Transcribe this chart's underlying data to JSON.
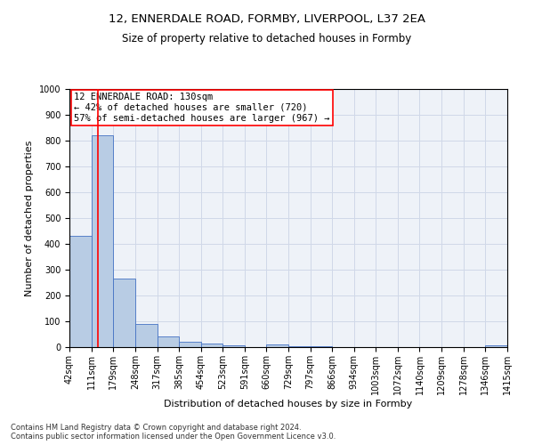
{
  "title1": "12, ENNERDALE ROAD, FORMBY, LIVERPOOL, L37 2EA",
  "title2": "Size of property relative to detached houses in Formby",
  "xlabel": "Distribution of detached houses by size in Formby",
  "ylabel": "Number of detached properties",
  "footer1": "Contains HM Land Registry data © Crown copyright and database right 2024.",
  "footer2": "Contains public sector information licensed under the Open Government Licence v3.0.",
  "annotation_line1": "12 ENNERDALE ROAD: 130sqm",
  "annotation_line2": "← 42% of detached houses are smaller (720)",
  "annotation_line3": "57% of semi-detached houses are larger (967) →",
  "subject_size": 130,
  "bar_edges": [
    42,
    111,
    179,
    248,
    317,
    385,
    454,
    523,
    591,
    660,
    729,
    797,
    866,
    934,
    1003,
    1072,
    1140,
    1209,
    1278,
    1346,
    1415
  ],
  "bar_heights": [
    432,
    820,
    265,
    90,
    43,
    20,
    15,
    8,
    0,
    12,
    5,
    4,
    0,
    0,
    0,
    0,
    0,
    0,
    0,
    8
  ],
  "bar_color": "#b8cce4",
  "bar_edge_color": "#4472c4",
  "vline_color": "#ff0000",
  "grid_color": "#d0d8e8",
  "background_color": "#eef2f8",
  "ylim": [
    0,
    1000
  ],
  "yticks": [
    0,
    100,
    200,
    300,
    400,
    500,
    600,
    700,
    800,
    900,
    1000
  ],
  "annotation_box_color": "#ff0000",
  "title_fontsize": 9.5,
  "subtitle_fontsize": 8.5,
  "tick_label_fontsize": 7,
  "ylabel_fontsize": 8,
  "xlabel_fontsize": 8,
  "footer_fontsize": 6,
  "annotation_fontsize": 7.5
}
